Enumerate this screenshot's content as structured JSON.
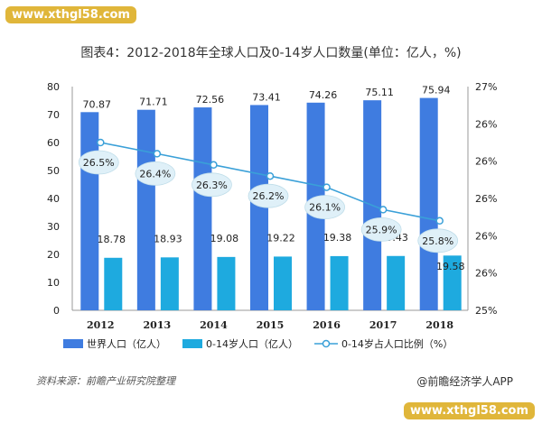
{
  "watermark_top": "www.xthgl58.com",
  "watermark_bottom": "www.xthgl58.com",
  "source": "资料来源：前瞻产业研究院整理",
  "credit": "@前瞻经济学人APP",
  "colors": {
    "world": "#3f7ce0",
    "youth": "#1eaadf",
    "line": "#3aa0d8"
  },
  "chart_data": {
    "type": "bar",
    "title": "图表4：2012-2018年全球人口及0-14岁人口数量(单位：亿人，%)",
    "categories": [
      "2012",
      "2013",
      "2014",
      "2015",
      "2016",
      "2017",
      "2018"
    ],
    "series": [
      {
        "name": "世界人口（亿人）",
        "type": "bar",
        "axis": "left",
        "values": [
          70.87,
          71.71,
          72.56,
          73.41,
          74.26,
          75.11,
          75.94
        ],
        "labels": [
          "70.87",
          "71.71",
          "72.56",
          "73.41",
          "74.26",
          "75.11",
          "75.94"
        ]
      },
      {
        "name": "0-14岁人口（亿人）",
        "type": "bar",
        "axis": "left",
        "values": [
          18.78,
          18.93,
          19.08,
          19.22,
          19.38,
          19.43,
          19.58
        ],
        "labels": [
          "18.78",
          "18.93",
          "19.08",
          "19.22",
          "19.38",
          "19.43",
          "19.58"
        ]
      },
      {
        "name": "0-14岁占人口比例（%）",
        "type": "line",
        "axis": "right",
        "values": [
          26.5,
          26.4,
          26.3,
          26.2,
          26.1,
          25.9,
          25.8
        ],
        "labels": [
          "26.5%",
          "26.4%",
          "26.3%",
          "26.2%",
          "26.1%",
          "25.9%",
          "25.8%"
        ]
      }
    ],
    "yleft": {
      "ylim": [
        0,
        80
      ],
      "ticks": [
        "0",
        "10",
        "20",
        "30",
        "40",
        "50",
        "60",
        "70",
        "80"
      ]
    },
    "yright": {
      "ylim": [
        25,
        27
      ],
      "ticks": [
        "25%",
        "26%",
        "26%",
        "26%",
        "26%",
        "26%",
        "27%"
      ]
    },
    "legend_position": "bottom",
    "grid": false
  }
}
